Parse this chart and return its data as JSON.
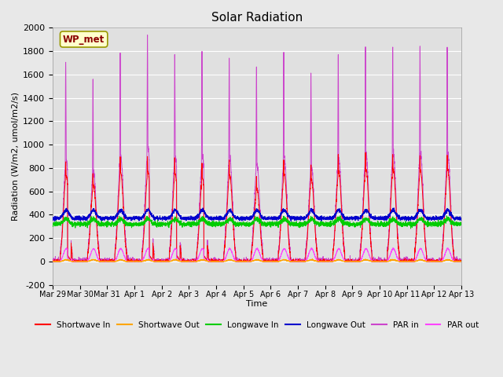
{
  "title": "Solar Radiation",
  "ylabel": "Radiation (W/m2, umol/m2/s)",
  "xlabel": "Time",
  "ylim": [
    -200,
    2000
  ],
  "yticks": [
    -200,
    0,
    200,
    400,
    600,
    800,
    1000,
    1200,
    1400,
    1600,
    1800,
    2000
  ],
  "background_color": "#e8e8e8",
  "plot_bg_color": "#e0e0e0",
  "grid_color": "#ffffff",
  "legend_label": "WP_met",
  "x_tick_labels": [
    "Mar 29",
    "Mar 30",
    "Mar 31",
    "Apr 1",
    "Apr 2",
    "Apr 3",
    "Apr 4",
    "Apr 5",
    "Apr 6",
    "Apr 7",
    "Apr 8",
    "Apr 9",
    "Apr 10",
    "Apr 11",
    "Apr 12",
    "Apr 13"
  ],
  "series_colors": {
    "shortwave_in": "#ff0000",
    "shortwave_out": "#ffa500",
    "longwave_in": "#00cc00",
    "longwave_out": "#0000cc",
    "par_in": "#cc44cc",
    "par_out": "#ff44ff"
  },
  "series_labels": {
    "shortwave_in": "Shortwave In",
    "shortwave_out": "Shortwave Out",
    "longwave_in": "Longwave In",
    "longwave_out": "Longwave Out",
    "par_in": "PAR in",
    "par_out": "PAR out"
  },
  "n_days": 15,
  "pts_per_day": 288,
  "par_peaks": [
    1730,
    1540,
    1790,
    1940,
    1800,
    1780,
    1780,
    1660,
    1760,
    1610,
    1760,
    1840,
    1850,
    1850,
    1850
  ],
  "sw_peaks": [
    870,
    760,
    890,
    900,
    880,
    840,
    870,
    730,
    870,
    820,
    900,
    930,
    920,
    910,
    920
  ],
  "lw_out_base": 370,
  "lw_in_base": 320,
  "par_out_peak": 110
}
